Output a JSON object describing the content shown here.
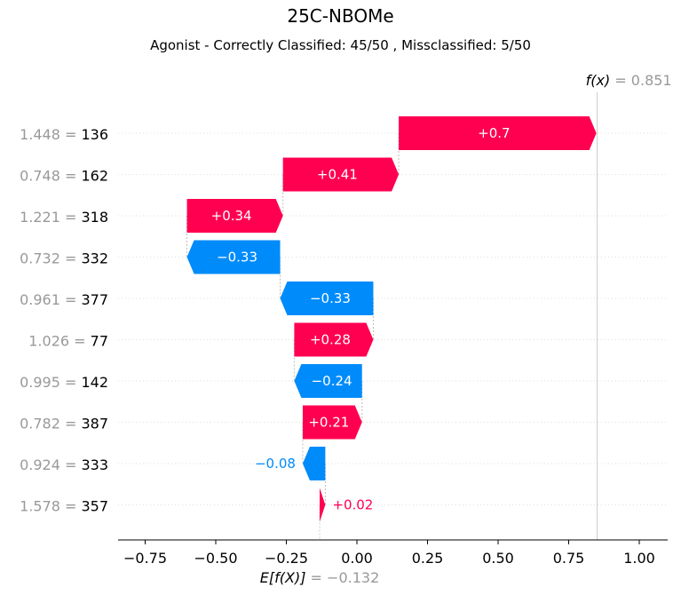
{
  "chart_data": {
    "type": "waterfall",
    "title": "25C-NBOMe",
    "subtitle": "Agonist - Correctly Classified: 45/50 , Missclassified: 5/50",
    "xlabel": "",
    "ylabel": "",
    "xlim": [
      -0.85,
      1.1
    ],
    "xticks": [
      -0.75,
      -0.5,
      -0.25,
      0.0,
      0.25,
      0.5,
      0.75,
      1.0
    ],
    "xtick_labels": [
      "−0.75",
      "−0.50",
      "−0.25",
      "0.00",
      "0.25",
      "0.50",
      "0.75",
      "1.00"
    ],
    "base_value": -0.132,
    "base_label_main": "E[f(X)]",
    "base_label_value": "= −0.132",
    "output_value": 0.851,
    "output_label_main": "f(x)",
    "output_label_value": "= 0.851",
    "features": [
      {
        "value": "1.448",
        "name": "136",
        "contribution": 0.7,
        "label": "+0.7"
      },
      {
        "value": "0.748",
        "name": "162",
        "contribution": 0.41,
        "label": "+0.41"
      },
      {
        "value": "1.221",
        "name": "318",
        "contribution": 0.34,
        "label": "+0.34"
      },
      {
        "value": "0.732",
        "name": "332",
        "contribution": -0.33,
        "label": "−0.33"
      },
      {
        "value": "0.961",
        "name": "377",
        "contribution": -0.33,
        "label": "−0.33"
      },
      {
        "value": "1.026",
        "name": "77",
        "contribution": 0.28,
        "label": "+0.28"
      },
      {
        "value": "0.995",
        "name": "142",
        "contribution": -0.24,
        "label": "−0.24"
      },
      {
        "value": "0.782",
        "name": "387",
        "contribution": 0.21,
        "label": "+0.21"
      },
      {
        "value": "0.924",
        "name": "333",
        "contribution": -0.08,
        "label": "−0.08"
      },
      {
        "value": "1.578",
        "name": "357",
        "contribution": 0.02,
        "label": "+0.02"
      }
    ],
    "colors": {
      "positive": "#ff0051",
      "negative": "#008bfb",
      "feature_value": "#999999",
      "feature_name": "#000000",
      "gridline": "#cccccc"
    },
    "grid": true
  }
}
